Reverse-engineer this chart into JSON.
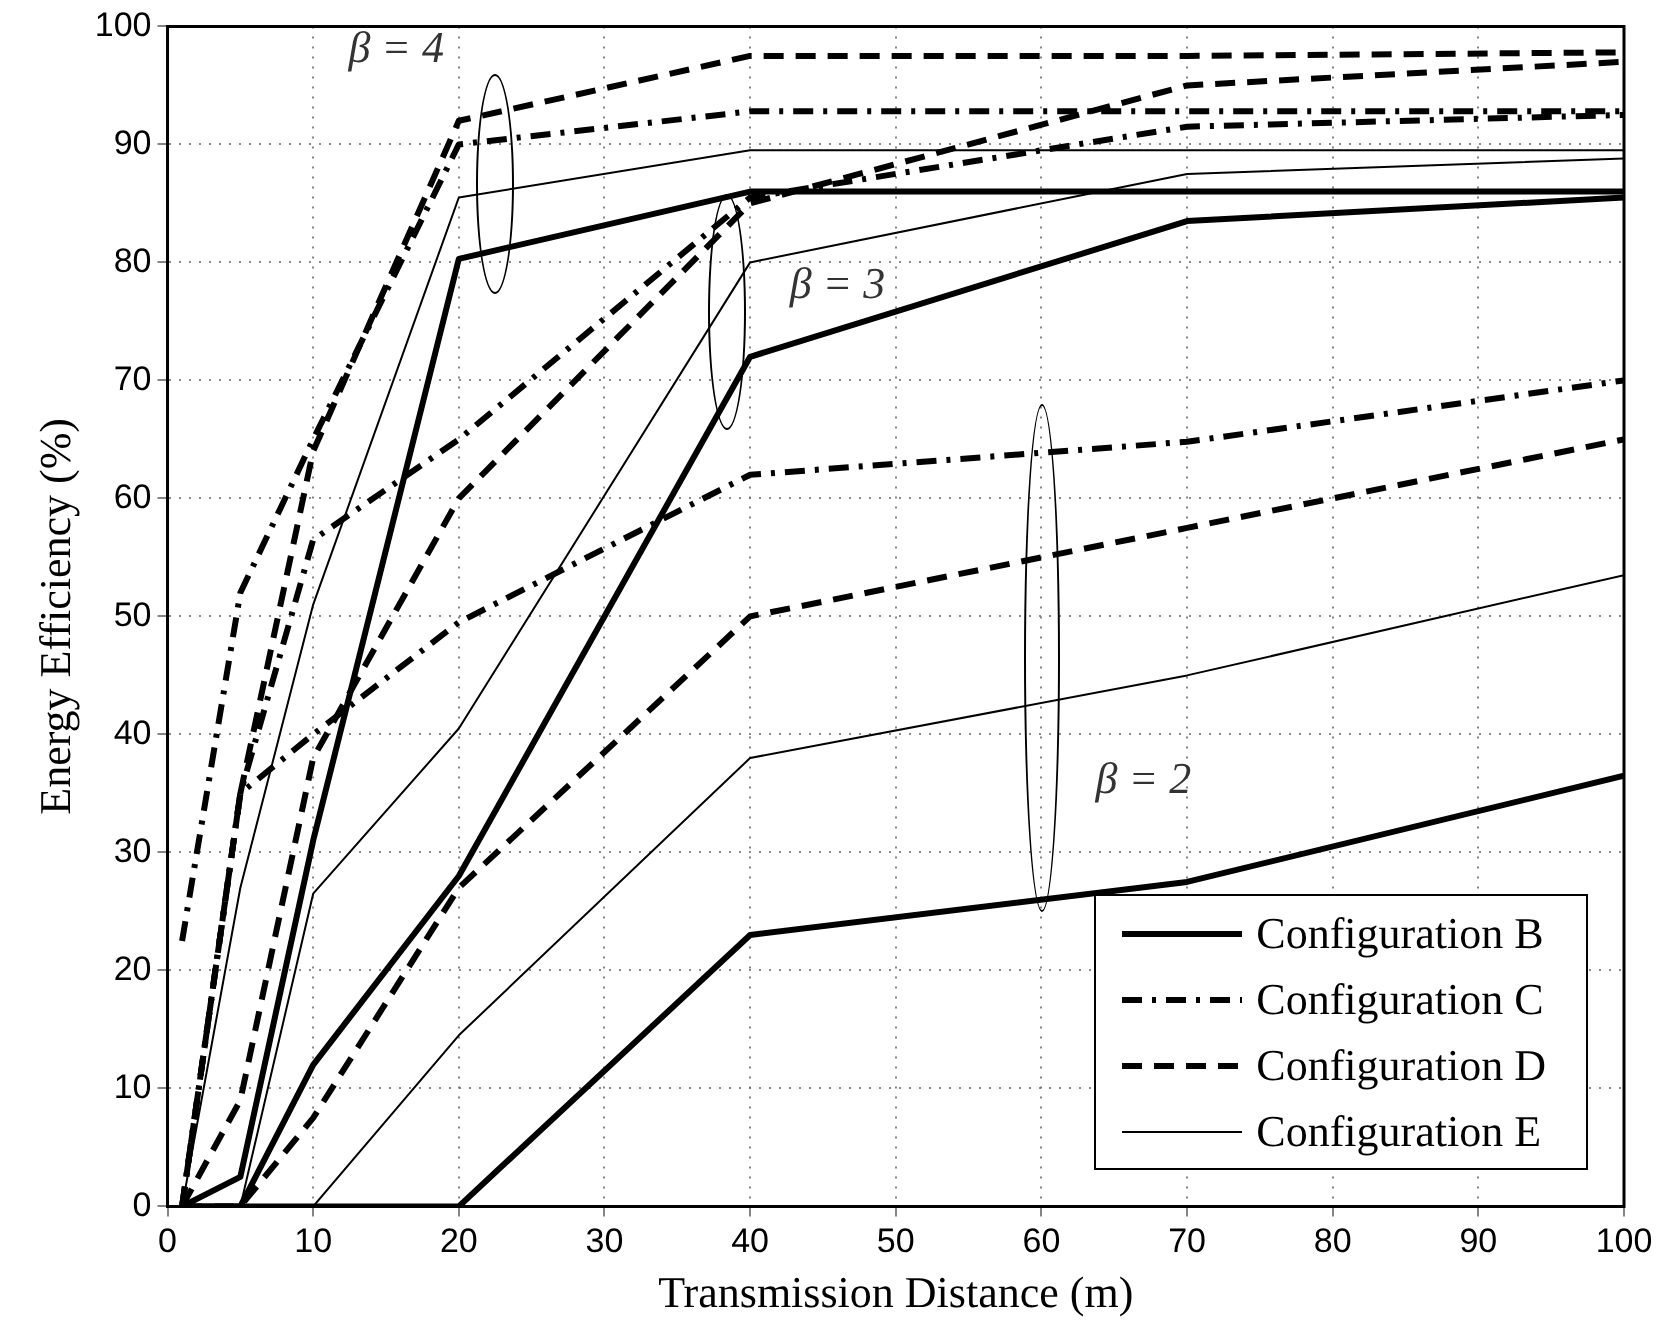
{
  "chart_data": {
    "type": "line",
    "xlabel": "Transmission Distance (m)",
    "ylabel": "Energy Efficiency (%)",
    "x": [
      1,
      5,
      10,
      20,
      40,
      70,
      100
    ],
    "xlim": [
      0,
      100
    ],
    "xticks": [
      0,
      10,
      20,
      30,
      40,
      50,
      60,
      70,
      80,
      90,
      100
    ],
    "ylim": [
      0,
      100
    ],
    "yticks": [
      0,
      10,
      20,
      30,
      40,
      50,
      60,
      70,
      80,
      90,
      100
    ],
    "grid": true,
    "legend": "bottom right",
    "marker": "none",
    "annotations": [
      "β = 4",
      "β = 3",
      "β = 2"
    ],
    "series": [
      {
        "name": "Configuration B",
        "color": "#000000",
        "line_style": "solid",
        "values": [
          0,
          0,
          0,
          0,
          23,
          27.5,
          36.5
        ]
      },
      {
        "name": "Configuration C",
        "color": "#000000",
        "line_style": "dashdot",
        "values": [
          0,
          35,
          40,
          49.5,
          62,
          64.8,
          70
        ]
      },
      {
        "name": "Configuration D",
        "color": "#000000",
        "line_style": "dashed",
        "values": [
          0,
          0,
          7.5,
          27,
          50,
          57.5,
          65
        ]
      },
      {
        "name": "Configuration E",
        "color": "#000000",
        "line_style": "solid",
        "values": [
          0,
          0,
          0,
          14.5,
          38,
          45,
          53.5
        ]
      },
      {
        "color": "#000000",
        "line_style": "solid",
        "values": [
          0,
          0,
          12,
          28,
          72,
          83.5,
          85.5
        ]
      },
      {
        "color": "#000000",
        "line_style": "dashdot",
        "values": [
          0,
          35,
          56.5,
          65,
          85.5,
          91.5,
          92.5
        ]
      },
      {
        "color": "#000000",
        "line_style": "dashed",
        "values": [
          0,
          9,
          38,
          60,
          85,
          95,
          97
        ]
      },
      {
        "color": "#000000",
        "line_style": "solid",
        "values": [
          0,
          0,
          26.5,
          40.5,
          80,
          87.5,
          88.8
        ]
      },
      {
        "color": "#000000",
        "line_style": "solid",
        "values": [
          0,
          2.5,
          31,
          80.3,
          86,
          86,
          86
        ]
      },
      {
        "color": "#000000",
        "line_style": "dashdot",
        "values": [
          22.5,
          52,
          65,
          90,
          92.8,
          92.8,
          92.8
        ]
      },
      {
        "color": "#000000",
        "line_style": "dashed",
        "values": [
          0,
          35,
          64,
          92,
          97.5,
          97.5,
          97.8
        ]
      },
      {
        "color": "#000000",
        "line_style": "solid",
        "values": [
          0,
          27,
          51,
          85.5,
          89.5,
          89.5,
          89.5
        ]
      }
    ]
  }
}
